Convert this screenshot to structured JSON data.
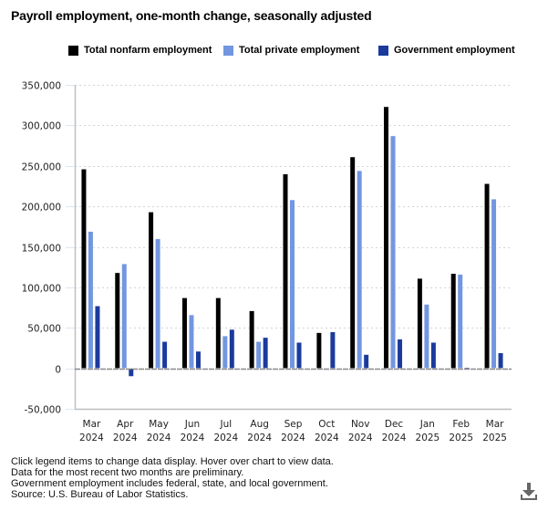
{
  "chart_data": {
    "type": "bar",
    "title": "Payroll employment, one-month change, seasonally adjusted",
    "xlabel": "",
    "ylabel": "",
    "ylim": [
      -50000,
      350000
    ],
    "yticks": [
      -50000,
      0,
      50000,
      100000,
      150000,
      200000,
      250000,
      300000,
      350000
    ],
    "ytick_labels": [
      "-50,000",
      "0",
      "50,000",
      "100,000",
      "150,000",
      "200,000",
      "250,000",
      "300,000",
      "350,000"
    ],
    "grid": true,
    "legend_position": "top",
    "categories": [
      [
        "Mar",
        "2024"
      ],
      [
        "Apr",
        "2024"
      ],
      [
        "May",
        "2024"
      ],
      [
        "Jun",
        "2024"
      ],
      [
        "Jul",
        "2024"
      ],
      [
        "Aug",
        "2024"
      ],
      [
        "Sep",
        "2024"
      ],
      [
        "Oct",
        "2024"
      ],
      [
        "Nov",
        "2024"
      ],
      [
        "Dec",
        "2024"
      ],
      [
        "Jan",
        "2025"
      ],
      [
        "Feb",
        "2025"
      ],
      [
        "Mar",
        "2025"
      ]
    ],
    "series": [
      {
        "name": "Total nonfarm employment",
        "color": "#000000",
        "values": [
          246000,
          118000,
          193000,
          87000,
          87000,
          71000,
          240000,
          44000,
          261000,
          323000,
          111000,
          117000,
          228000
        ]
      },
      {
        "name": "Total private employment",
        "color": "#7296e0",
        "values": [
          169000,
          129000,
          160000,
          66000,
          40000,
          33000,
          208000,
          -2000,
          244000,
          287000,
          79000,
          116000,
          209000
        ]
      },
      {
        "name": "Government employment",
        "color": "#1a3a9c",
        "values": [
          77000,
          -10000,
          33000,
          21000,
          48000,
          38000,
          32000,
          45000,
          17000,
          36000,
          32000,
          1000,
          19000
        ]
      }
    ]
  },
  "notes": [
    "Click legend items to change data display. Hover over chart to view data.",
    "Data for the most recent two months are preliminary.",
    "Government employment includes federal, state, and local government.",
    "Source: U.S. Bureau of Labor Statistics."
  ],
  "download_icon": "download-icon"
}
